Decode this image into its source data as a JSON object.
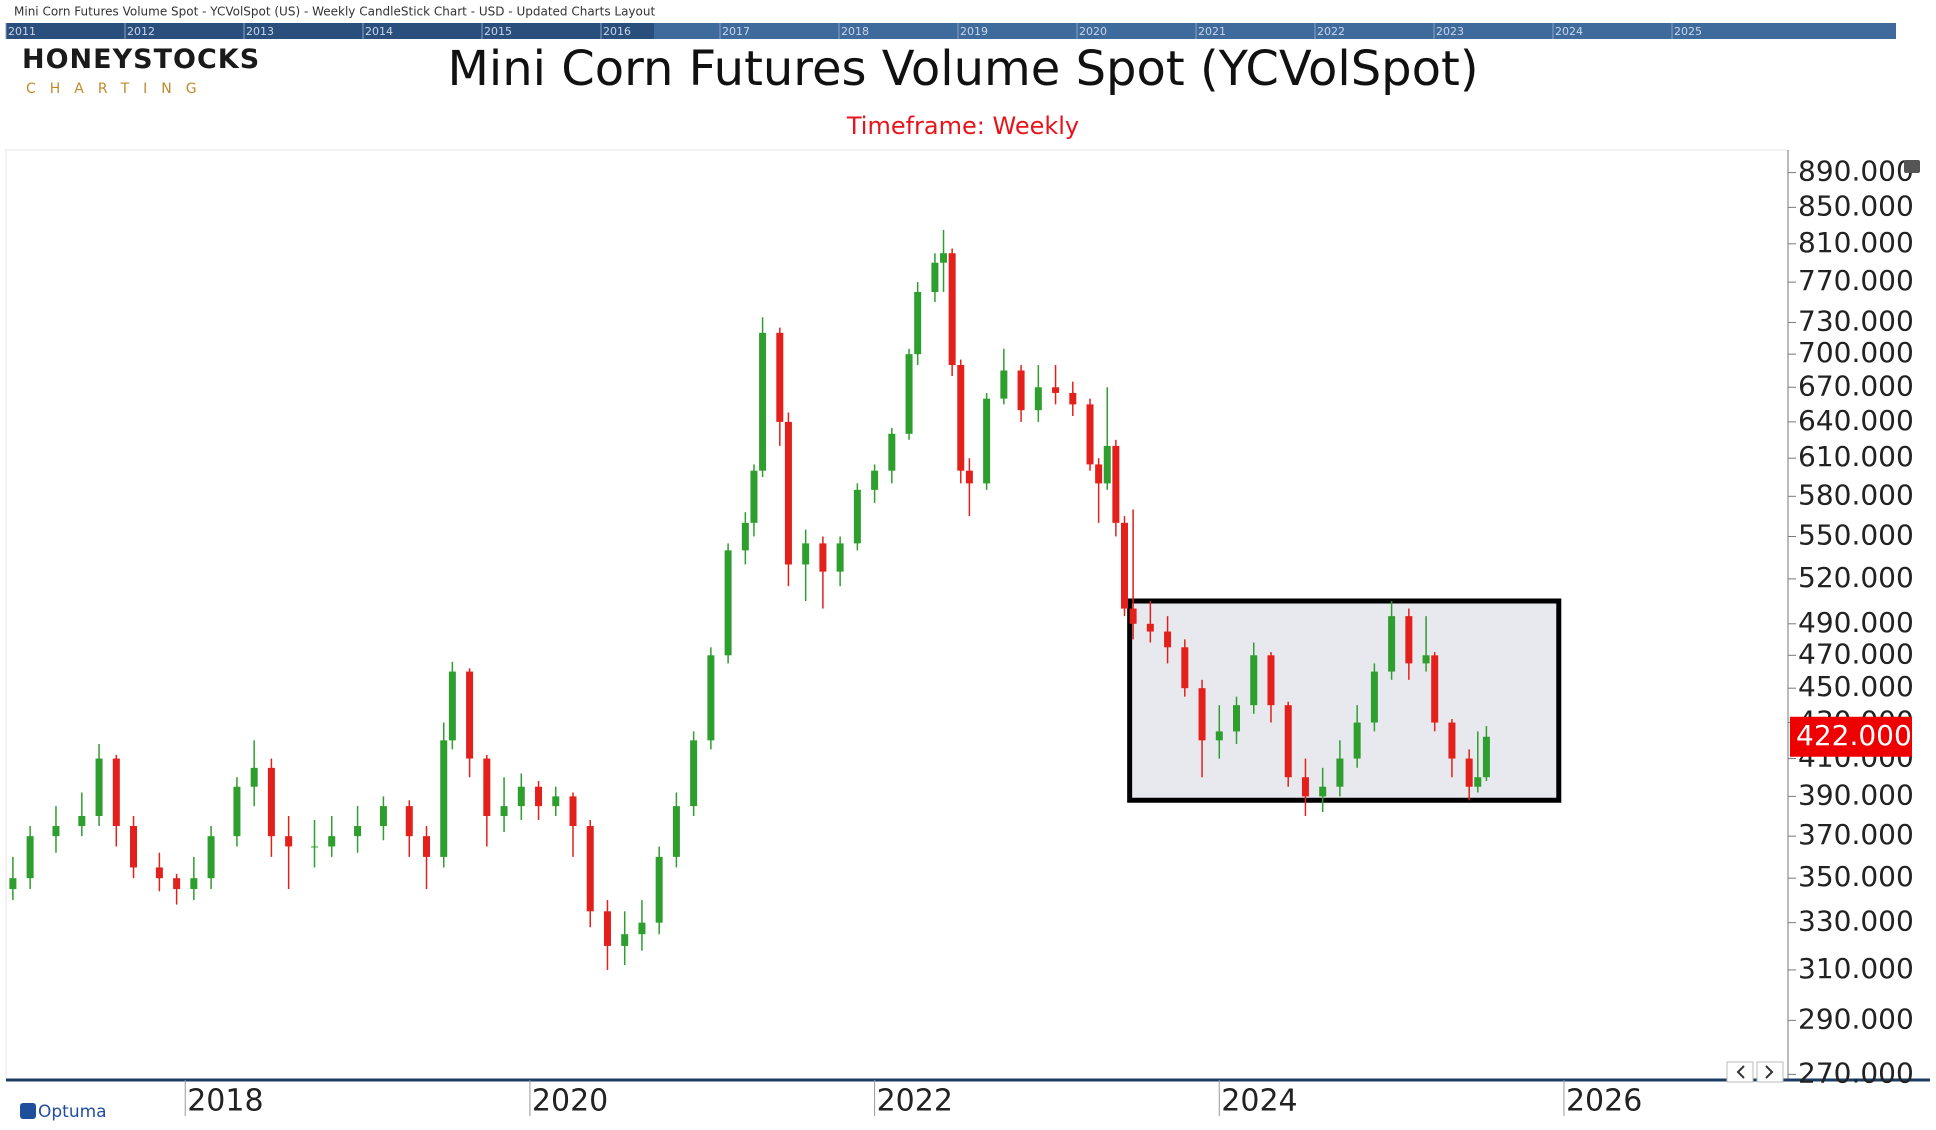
{
  "header": {
    "caption": "Mini Corn Futures Volume Spot - YCVolSpot (US) - Weekly CandleStick Chart - USD - Updated Charts Layout"
  },
  "navigator": {
    "years": [
      "2011",
      "2012",
      "2013",
      "2014",
      "2015",
      "2016",
      "2017",
      "2018",
      "2019",
      "2020",
      "2021",
      "2022",
      "2023",
      "2024",
      "2025"
    ]
  },
  "logo": {
    "name": "HONEYSTOCKS",
    "tagline": "CHARTING"
  },
  "footer_brand": "Optuma",
  "chart_data": {
    "type": "candlestick",
    "title": "Mini Corn Futures Volume Spot (YCVolSpot)",
    "subtitle": "Timeframe: Weekly",
    "up_color": "#2e9e2e",
    "down_color": "#e3201b",
    "log_scale": true,
    "xlim": [
      2016.96,
      2027.3
    ],
    "xticks": [
      2018,
      2020,
      2022,
      2024,
      2026
    ],
    "ylim": [
      268,
      917
    ],
    "yticks": [
      {
        "value": 890,
        "label": "890.000"
      },
      {
        "value": 850,
        "label": "850.000"
      },
      {
        "value": 810,
        "label": "810.000"
      },
      {
        "value": 770,
        "label": "770.000"
      },
      {
        "value": 730,
        "label": "730.000"
      },
      {
        "value": 700,
        "label": "700.000"
      },
      {
        "value": 670,
        "label": "670.000"
      },
      {
        "value": 640,
        "label": "640.000"
      },
      {
        "value": 610,
        "label": "610.000"
      },
      {
        "value": 580,
        "label": "580.000"
      },
      {
        "value": 550,
        "label": "550.000"
      },
      {
        "value": 520,
        "label": "520.000"
      },
      {
        "value": 490,
        "label": "490.000"
      },
      {
        "value": 470,
        "label": "470.000"
      },
      {
        "value": 450,
        "label": "450.000"
      },
      {
        "value": 430,
        "label": "430.000"
      },
      {
        "value": 410,
        "label": "410.000"
      },
      {
        "value": 390,
        "label": "390.000"
      },
      {
        "value": 370,
        "label": "370.000"
      },
      {
        "value": 350,
        "label": "350.000"
      },
      {
        "value": 330,
        "label": "330.000"
      },
      {
        "value": 310,
        "label": "310.000"
      },
      {
        "value": 290,
        "label": "290.000"
      },
      {
        "value": 270,
        "label": "270.000"
      }
    ],
    "last_label": "422.000",
    "highlight": {
      "x": [
        2023.48,
        2025.97
      ],
      "y": [
        388,
        505
      ]
    },
    "x": [
      2017.0,
      2017.1,
      2017.25,
      2017.4,
      2017.5,
      2017.6,
      2017.7,
      2017.85,
      2017.95,
      2018.05,
      2018.15,
      2018.3,
      2018.4,
      2018.5,
      2018.6,
      2018.75,
      2018.85,
      2019.0,
      2019.15,
      2019.3,
      2019.4,
      2019.5,
      2019.55,
      2019.65,
      2019.75,
      2019.85,
      2019.95,
      2020.05,
      2020.15,
      2020.25,
      2020.35,
      2020.45,
      2020.55,
      2020.65,
      2020.75,
      2020.85,
      2020.95,
      2021.05,
      2021.15,
      2021.25,
      2021.3,
      2021.35,
      2021.45,
      2021.5,
      2021.6,
      2021.7,
      2021.8,
      2021.9,
      2022.0,
      2022.1,
      2022.2,
      2022.25,
      2022.35,
      2022.4,
      2022.45,
      2022.5,
      2022.55,
      2022.65,
      2022.75,
      2022.85,
      2022.95,
      2023.05,
      2023.15,
      2023.25,
      2023.3,
      2023.35,
      2023.4,
      2023.45,
      2023.5,
      2023.6,
      2023.7,
      2023.8,
      2023.9,
      2024.0,
      2024.1,
      2024.2,
      2024.3,
      2024.4,
      2024.5,
      2024.6,
      2024.7,
      2024.8,
      2024.9,
      2025.0,
      2025.1,
      2025.2,
      2025.25,
      2025.35,
      2025.45,
      2025.5,
      2025.55
    ],
    "open": [
      345,
      350,
      370,
      375,
      380,
      410,
      375,
      355,
      350,
      345,
      350,
      370,
      395,
      405,
      370,
      365,
      365,
      370,
      375,
      385,
      370,
      360,
      420,
      460,
      410,
      380,
      385,
      395,
      385,
      390,
      375,
      335,
      320,
      325,
      330,
      360,
      385,
      420,
      470,
      540,
      560,
      600,
      720,
      640,
      530,
      545,
      525,
      545,
      585,
      600,
      630,
      700,
      760,
      790,
      800,
      690,
      600,
      590,
      660,
      685,
      650,
      670,
      665,
      655,
      605,
      590,
      620,
      560,
      500,
      490,
      485,
      475,
      450,
      420,
      425,
      440,
      470,
      440,
      400,
      390,
      395,
      410,
      430,
      460,
      495,
      465,
      470,
      430,
      410,
      395,
      400
    ],
    "high": [
      360,
      375,
      385,
      392,
      418,
      412,
      380,
      362,
      352,
      360,
      375,
      400,
      420,
      410,
      380,
      378,
      380,
      385,
      390,
      388,
      375,
      430,
      466,
      462,
      412,
      400,
      402,
      398,
      395,
      392,
      378,
      340,
      335,
      340,
      365,
      392,
      425,
      475,
      545,
      568,
      605,
      735,
      725,
      648,
      555,
      550,
      550,
      590,
      605,
      635,
      705,
      770,
      800,
      825,
      805,
      695,
      610,
      665,
      705,
      690,
      690,
      690,
      675,
      660,
      610,
      670,
      625,
      565,
      570,
      505,
      495,
      480,
      455,
      440,
      445,
      478,
      472,
      442,
      410,
      405,
      420,
      440,
      465,
      505,
      500,
      495,
      472,
      432,
      415,
      425,
      428
    ],
    "low": [
      340,
      345,
      362,
      370,
      375,
      365,
      350,
      344,
      338,
      340,
      345,
      365,
      385,
      360,
      345,
      355,
      360,
      362,
      368,
      360,
      345,
      355,
      415,
      400,
      365,
      372,
      378,
      378,
      380,
      360,
      328,
      310,
      312,
      318,
      325,
      355,
      380,
      415,
      465,
      530,
      550,
      595,
      620,
      515,
      505,
      500,
      515,
      540,
      575,
      590,
      625,
      690,
      750,
      760,
      680,
      590,
      565,
      585,
      655,
      640,
      640,
      655,
      645,
      600,
      560,
      585,
      550,
      495,
      480,
      478,
      465,
      445,
      400,
      410,
      418,
      435,
      430,
      395,
      380,
      382,
      390,
      405,
      425,
      455,
      455,
      460,
      425,
      400,
      388,
      392,
      398
    ],
    "close": [
      350,
      370,
      375,
      380,
      410,
      375,
      355,
      350,
      345,
      350,
      370,
      395,
      405,
      370,
      365,
      365,
      370,
      375,
      385,
      370,
      360,
      420,
      460,
      410,
      380,
      385,
      395,
      385,
      390,
      375,
      335,
      320,
      325,
      330,
      360,
      385,
      420,
      470,
      540,
      560,
      600,
      720,
      640,
      530,
      545,
      525,
      545,
      585,
      600,
      630,
      700,
      760,
      790,
      800,
      690,
      600,
      590,
      660,
      685,
      650,
      670,
      665,
      655,
      605,
      590,
      620,
      560,
      500,
      490,
      485,
      475,
      450,
      420,
      425,
      440,
      470,
      440,
      400,
      390,
      395,
      410,
      430,
      460,
      495,
      465,
      470,
      430,
      410,
      395,
      400,
      422
    ]
  }
}
